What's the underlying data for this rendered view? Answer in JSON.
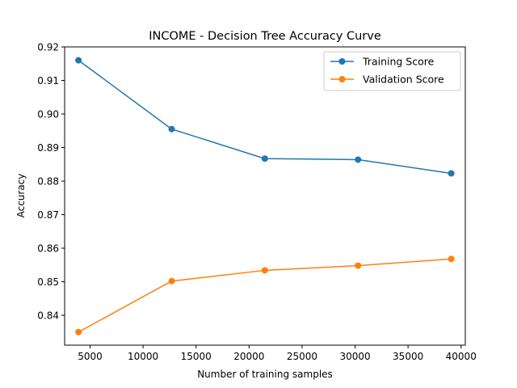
{
  "chart_data": {
    "type": "line",
    "title": "INCOME - Decision Tree Accuracy Curve",
    "xlabel": "Number of training samples",
    "ylabel": "Accuracy",
    "xlim": [
      2600,
      40400
    ],
    "ylim": [
      0.8311,
      0.92
    ],
    "x": [
      3907,
      12698,
      21489,
      30280,
      39071
    ],
    "xticks": [
      5000,
      10000,
      15000,
      20000,
      25000,
      30000,
      35000,
      40000
    ],
    "xtick_labels": [
      "5000",
      "10000",
      "15000",
      "20000",
      "25000",
      "30000",
      "35000",
      "40000"
    ],
    "yticks": [
      0.84,
      0.85,
      0.86,
      0.87,
      0.88,
      0.89,
      0.9,
      0.91,
      0.92
    ],
    "ytick_labels": [
      "0.84",
      "0.85",
      "0.86",
      "0.87",
      "0.88",
      "0.89",
      "0.90",
      "0.91",
      "0.92"
    ],
    "grid": false,
    "legend_position": "top-right",
    "series": [
      {
        "name": "Training Score",
        "color": "#1f77b4",
        "values": [
          0.916,
          0.8955,
          0.8867,
          0.8864,
          0.8823
        ]
      },
      {
        "name": "Validation Score",
        "color": "#ff7f0e",
        "values": [
          0.835,
          0.8502,
          0.8534,
          0.8548,
          0.8568
        ]
      }
    ]
  }
}
